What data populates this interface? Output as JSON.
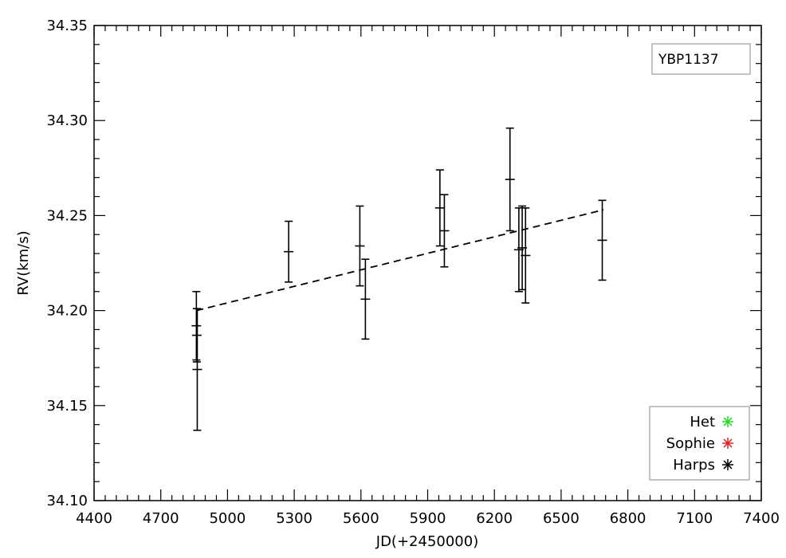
{
  "chart_data": {
    "type": "scatter",
    "title": "",
    "xlabel": "JD(+2450000)",
    "ylabel": "RV(km/s)",
    "xlim": [
      4400,
      7400
    ],
    "ylim": [
      34.1,
      34.35
    ],
    "xticks": [
      "4400",
      "4700",
      "5000",
      "5300",
      "5600",
      "5900",
      "6200",
      "6500",
      "6800",
      "7100",
      "7400"
    ],
    "yticks": [
      "34.10",
      "34.15",
      "34.20",
      "34.25",
      "34.30",
      "34.35"
    ],
    "grid": false,
    "annotation": "YBP1137",
    "legend_position": "bottom-right",
    "series": [
      {
        "name": "Harps",
        "color": "#000000",
        "points": [
          {
            "x": 4860,
            "y": 34.192,
            "err": 0.018
          },
          {
            "x": 4862,
            "y": 34.187,
            "err": 0.014
          },
          {
            "x": 4864,
            "y": 34.169,
            "err": 0.032
          },
          {
            "x": 5275,
            "y": 34.231,
            "err": 0.016
          },
          {
            "x": 5595,
            "y": 34.234,
            "err": 0.021
          },
          {
            "x": 5620,
            "y": 34.206,
            "err": 0.021
          },
          {
            "x": 5955,
            "y": 34.254,
            "err": 0.02
          },
          {
            "x": 5975,
            "y": 34.242,
            "err": 0.019
          },
          {
            "x": 6270,
            "y": 34.269,
            "err": 0.027
          },
          {
            "x": 6310,
            "y": 34.232,
            "err": 0.022
          },
          {
            "x": 6325,
            "y": 34.233,
            "err": 0.022
          },
          {
            "x": 6340,
            "y": 34.229,
            "err": 0.025
          },
          {
            "x": 6685,
            "y": 34.237,
            "err": 0.021
          }
        ]
      }
    ],
    "trend": {
      "x": [
        4860,
        6690
      ],
      "y": [
        34.2,
        34.253
      ],
      "style": "dashed"
    },
    "legend": [
      {
        "label": "Het",
        "color": "#22dd22"
      },
      {
        "label": "Sophie",
        "color": "#dd2222"
      },
      {
        "label": "Harps",
        "color": "#000000"
      }
    ]
  }
}
